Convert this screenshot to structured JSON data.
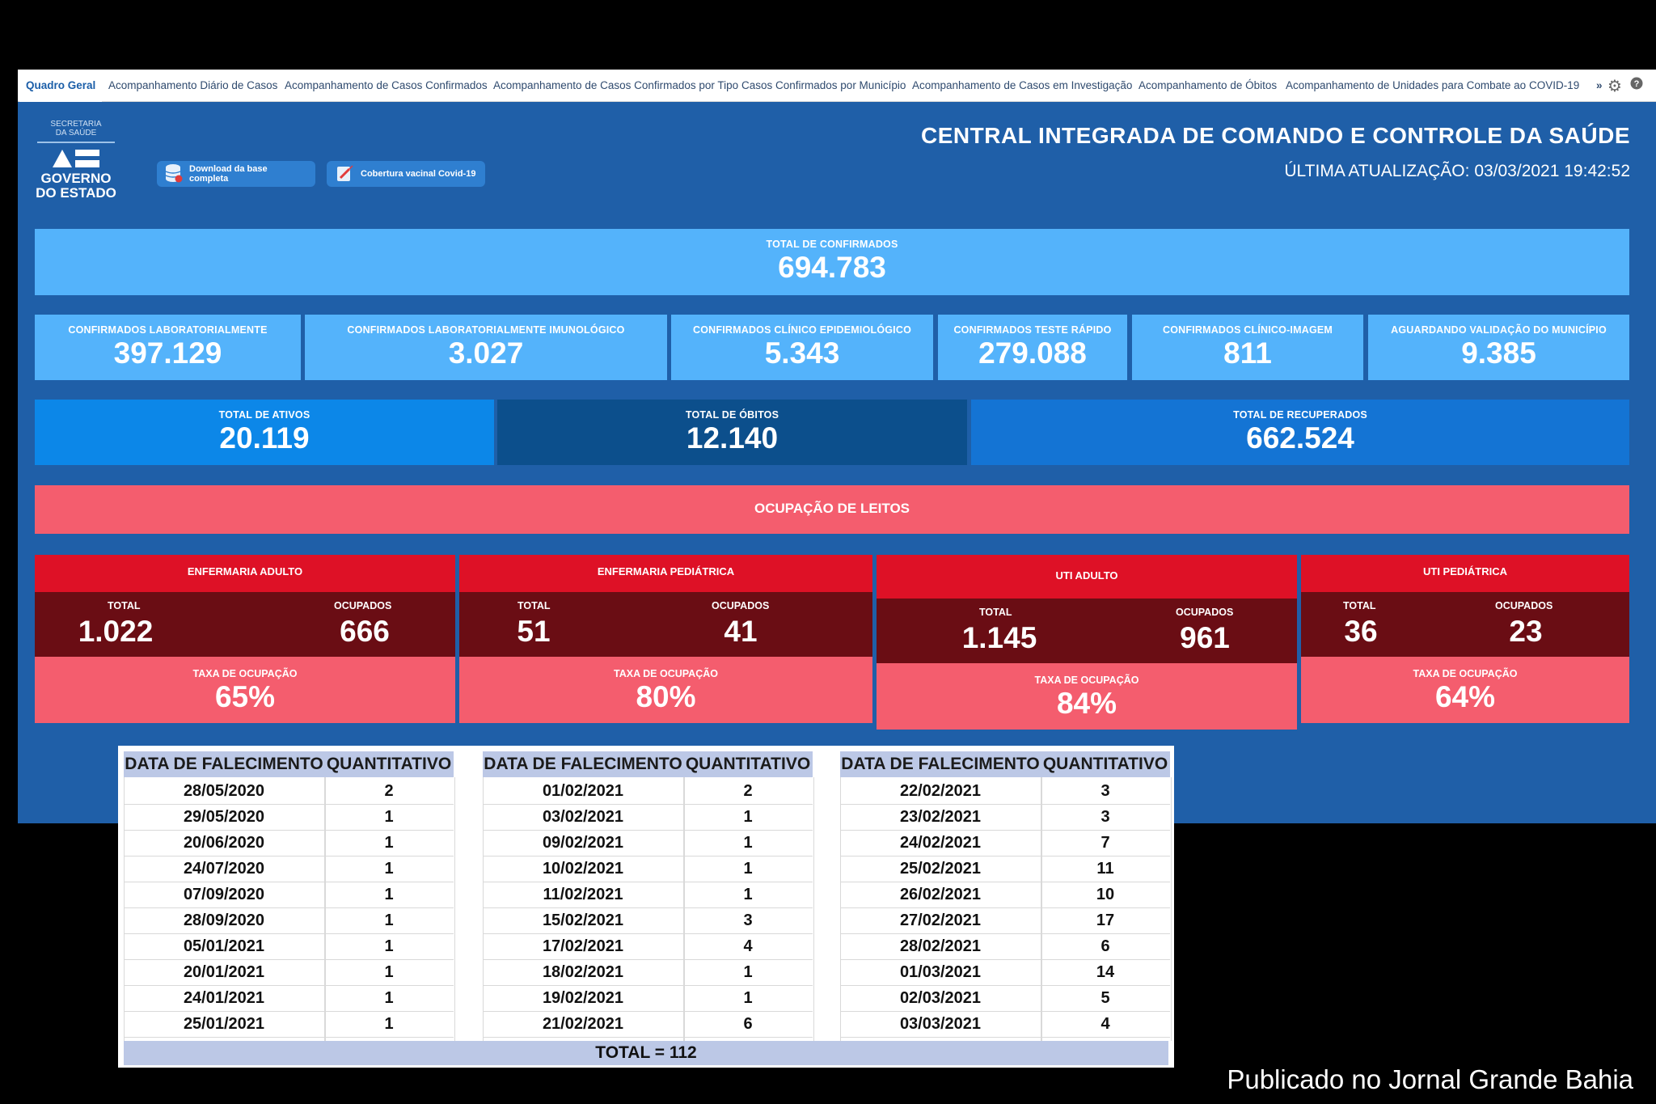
{
  "tabs": [
    {
      "label": "Quadro Geral",
      "active": true
    },
    {
      "label": "Acompanhamento Diário de Casos"
    },
    {
      "label": "Acompanhamento de Casos Confirmados"
    },
    {
      "label": "Acompanhamento de Casos Confirmados por Tipo"
    },
    {
      "label": "Casos Confirmados por Município"
    },
    {
      "label": "Acompanhamento de Casos em Investigação"
    },
    {
      "label": "Acompanhamento de Óbitos"
    },
    {
      "label": "Acompanhamento de Unidades para Combate ao COVID-19"
    }
  ],
  "tab_more": "»",
  "logo": {
    "top_line1": "SECRETARIA",
    "top_line2": "DA SAÚDE",
    "main_line1": "GOVERNO",
    "main_line2": "DO ESTADO"
  },
  "buttons": {
    "download": "Download da base completa",
    "vaccine": "Cobertura vacinal Covid-19"
  },
  "header": {
    "title": "CENTRAL INTEGRADA DE COMANDO E CONTROLE DA SAÚDE",
    "updated": "ÚLTIMA ATUALIZAÇÃO: 03/03/2021 19:42:52"
  },
  "total_confirmed": {
    "label": "TOTAL DE CONFIRMADOS",
    "value": "694.783"
  },
  "confirmed_breakdown": [
    {
      "label": "CONFIRMADOS LABORATORIALMENTE",
      "value": "397.129"
    },
    {
      "label": "CONFIRMADOS LABORATORIALMENTE IMUNOLÓGICO",
      "value": "3.027"
    },
    {
      "label": "CONFIRMADOS CLÍNICO EPIDEMIOLÓGICO",
      "value": "5.343"
    },
    {
      "label": "CONFIRMADOS TESTE RÁPIDO",
      "value": "279.088"
    },
    {
      "label": "CONFIRMADOS CLÍNICO-IMAGEM",
      "value": "811"
    },
    {
      "label": "AGUARDANDO VALIDAÇÃO DO MUNICÍPIO",
      "value": "9.385"
    }
  ],
  "totals": [
    {
      "label": "TOTAL DE ATIVOS",
      "value": "20.119"
    },
    {
      "label": "TOTAL DE ÓBITOS",
      "value": "12.140"
    },
    {
      "label": "TOTAL DE RECUPERADOS",
      "value": "662.524"
    }
  ],
  "beds_banner": "OCUPAÇÃO DE LEITOS",
  "beds": [
    {
      "title": "ENFERMARIA ADULTO",
      "total_label": "TOTAL",
      "total": "1.022",
      "occupied_label": "OCUPADOS",
      "occupied": "666",
      "rate_label": "TAXA DE OCUPAÇÃO",
      "rate": "65%"
    },
    {
      "title": "ENFERMARIA PEDIÁTRICA",
      "total_label": "TOTAL",
      "total": "51",
      "occupied_label": "OCUPADOS",
      "occupied": "41",
      "rate_label": "TAXA DE OCUPAÇÃO",
      "rate": "80%"
    },
    {
      "title": "UTI ADULTO",
      "total_label": "TOTAL",
      "total": "1.145",
      "occupied_label": "OCUPADOS",
      "occupied": "961",
      "rate_label": "TAXA DE OCUPAÇÃO",
      "rate": "84%"
    },
    {
      "title": "UTI PEDIÁTRICA",
      "total_label": "TOTAL",
      "total": "36",
      "occupied_label": "OCUPADOS",
      "occupied": "23",
      "rate_label": "TAXA DE OCUPAÇÃO",
      "rate": "64%"
    }
  ],
  "deaths_table": {
    "headers": [
      "DATA DE FALECIMENTO",
      "QUANTITATIVO"
    ],
    "groups": [
      [
        [
          "28/05/2020",
          "2"
        ],
        [
          "29/05/2020",
          "1"
        ],
        [
          "20/06/2020",
          "1"
        ],
        [
          "24/07/2020",
          "1"
        ],
        [
          "07/09/2020",
          "1"
        ],
        [
          "28/09/2020",
          "1"
        ],
        [
          "05/01/2021",
          "1"
        ],
        [
          "20/01/2021",
          "1"
        ],
        [
          "24/01/2021",
          "1"
        ],
        [
          "25/01/2021",
          "1"
        ]
      ],
      [
        [
          "01/02/2021",
          "2"
        ],
        [
          "03/02/2021",
          "1"
        ],
        [
          "09/02/2021",
          "1"
        ],
        [
          "10/02/2021",
          "1"
        ],
        [
          "11/02/2021",
          "1"
        ],
        [
          "15/02/2021",
          "3"
        ],
        [
          "17/02/2021",
          "4"
        ],
        [
          "18/02/2021",
          "1"
        ],
        [
          "19/02/2021",
          "1"
        ],
        [
          "21/02/2021",
          "6"
        ]
      ],
      [
        [
          "22/02/2021",
          "3"
        ],
        [
          "23/02/2021",
          "3"
        ],
        [
          "24/02/2021",
          "7"
        ],
        [
          "25/02/2021",
          "11"
        ],
        [
          "26/02/2021",
          "10"
        ],
        [
          "27/02/2021",
          "17"
        ],
        [
          "28/02/2021",
          "6"
        ],
        [
          "01/03/2021",
          "14"
        ],
        [
          "02/03/2021",
          "5"
        ],
        [
          "03/03/2021",
          "4"
        ]
      ]
    ],
    "total": "TOTAL = 112"
  },
  "footer": "Publicado no Jornal Grande Bahia"
}
